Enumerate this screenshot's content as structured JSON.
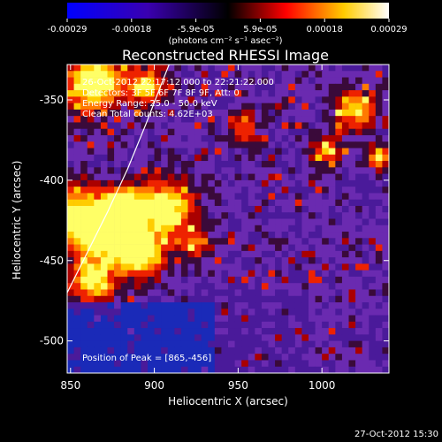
{
  "colorbar": {
    "tick_labels": [
      "-0.00029",
      "-0.00018",
      "-5.9e-05",
      "5.9e-05",
      "0.00018",
      "0.00029"
    ],
    "unit_label": "(photons cm⁻² s⁻¹ asec⁻²)",
    "colors": [
      "#0000ff",
      "#000000",
      "#ff0000",
      "#ffff00",
      "#ffffff"
    ]
  },
  "annotations": {
    "time_range": "26-Oct-2012 22:17:12.000 to 22:21:22.000",
    "detectors": "Detectors: 3F 5F 6F 7F 8F 9F, Att: 0",
    "energy": "Energy Range: 25.0 - 50.0 keV",
    "method": "Clean     Total counts: 4.62E+03",
    "peak": "Position of Peak = [865,-456]"
  },
  "timestamp": "27-Oct-2012 15:30",
  "chart_data": {
    "type": "heatmap",
    "title": "Reconstructed RHESSI Image",
    "xlabel": "Heliocentric X (arcsec)",
    "ylabel": "Heliocentric Y (arcsec)",
    "xlim": [
      848,
      1040
    ],
    "ylim": [
      -520,
      -328
    ],
    "x_ticks": [
      "850",
      "900",
      "950",
      "1000"
    ],
    "y_ticks": [
      "-350",
      "-400",
      "-450",
      "-500"
    ],
    "color_range": [
      -0.00029,
      0.00029
    ],
    "peak_position": [
      865,
      -456
    ],
    "limb_curve": [
      [
        848,
        -470
      ],
      [
        860,
        -445
      ],
      [
        872,
        -420
      ],
      [
        884,
        -393
      ],
      [
        895,
        -365
      ],
      [
        905,
        -338
      ],
      [
        910,
        -325
      ]
    ]
  }
}
